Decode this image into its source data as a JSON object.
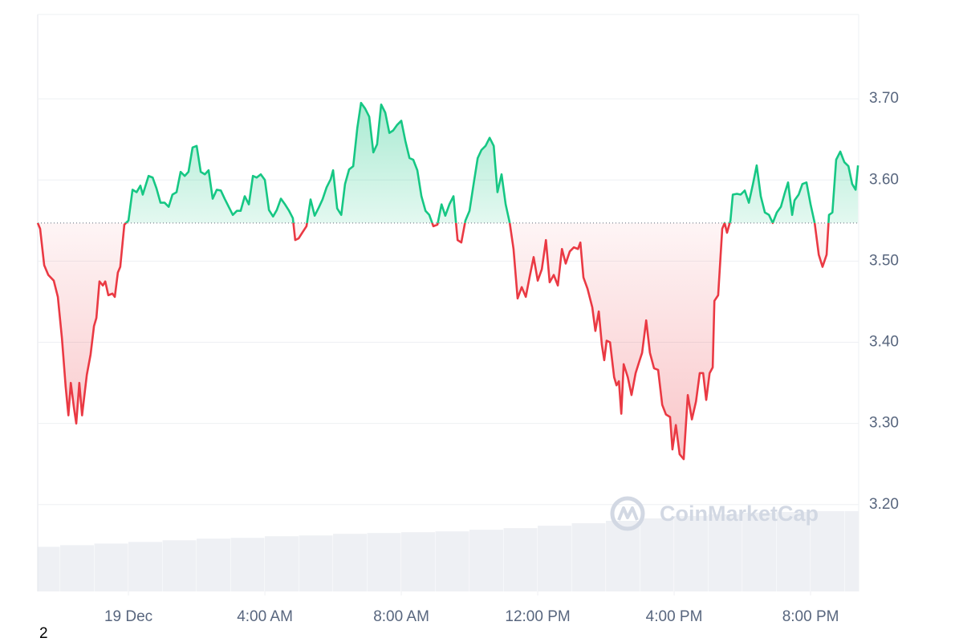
{
  "chart_data": {
    "type": "line",
    "watermark": "CoinMarketCap",
    "footnote": "2",
    "up_color": "#16c784",
    "down_color": "#ea3943",
    "baseline": 3.547,
    "grid": true,
    "xlim": [
      -2.66,
      21.41
    ],
    "ylim": [
      3.093,
      3.804
    ],
    "xticks": [
      {
        "value": 0,
        "label": "19 Dec"
      },
      {
        "value": 4,
        "label": "4:00 AM"
      },
      {
        "value": 8,
        "label": "8:00 AM"
      },
      {
        "value": 12,
        "label": "12:00 PM"
      },
      {
        "value": 16,
        "label": "4:00 PM"
      },
      {
        "value": 20,
        "label": "8:00 PM"
      }
    ],
    "yticks": [
      {
        "value": 3.2,
        "label": "3.20"
      },
      {
        "value": 3.3,
        "label": "3.30"
      },
      {
        "value": 3.4,
        "label": "3.40"
      },
      {
        "value": 3.5,
        "label": "3.50"
      },
      {
        "value": 3.6,
        "label": "3.60"
      },
      {
        "value": 3.7,
        "label": "3.70"
      }
    ],
    "x": [
      -2.66,
      -2.59,
      -2.47,
      -2.35,
      -2.19,
      -2.07,
      -1.95,
      -1.84,
      -1.76,
      -1.69,
      -1.6,
      -1.53,
      -1.44,
      -1.36,
      -1.22,
      -1.11,
      -1.01,
      -0.94,
      -0.85,
      -0.75,
      -0.68,
      -0.59,
      -0.47,
      -0.4,
      -0.31,
      -0.24,
      -0.12,
      0,
      0.12,
      0.24,
      0.35,
      0.42,
      0.59,
      0.71,
      0.82,
      0.94,
      1.06,
      1.18,
      1.29,
      1.41,
      1.53,
      1.65,
      1.76,
      1.88,
      2.0,
      2.12,
      2.24,
      2.35,
      2.47,
      2.59,
      2.71,
      2.82,
      2.94,
      3.06,
      3.18,
      3.29,
      3.41,
      3.53,
      3.65,
      3.76,
      3.88,
      4.0,
      4.12,
      4.24,
      4.35,
      4.47,
      4.59,
      4.71,
      4.82,
      4.89,
      4.99,
      5.11,
      5.22,
      5.34,
      5.46,
      5.58,
      5.69,
      5.81,
      5.93,
      6.0,
      6.12,
      6.24,
      6.35,
      6.47,
      6.59,
      6.71,
      6.82,
      6.94,
      7.06,
      7.18,
      7.29,
      7.41,
      7.53,
      7.65,
      7.76,
      7.88,
      8.0,
      8.12,
      8.24,
      8.35,
      8.47,
      8.59,
      8.71,
      8.82,
      8.94,
      9.06,
      9.18,
      9.29,
      9.41,
      9.53,
      9.65,
      9.76,
      9.88,
      10.0,
      10.12,
      10.24,
      10.35,
      10.47,
      10.59,
      10.71,
      10.82,
      10.94,
      11.06,
      11.18,
      11.29,
      11.41,
      11.53,
      11.65,
      11.76,
      11.88,
      12.0,
      12.12,
      12.24,
      12.35,
      12.47,
      12.59,
      12.71,
      12.82,
      12.94,
      13.06,
      13.18,
      13.25,
      13.34,
      13.46,
      13.6,
      13.69,
      13.79,
      13.88,
      13.95,
      14.02,
      14.12,
      14.24,
      14.31,
      14.38,
      14.45,
      14.52,
      14.64,
      14.75,
      14.87,
      14.99,
      15.06,
      15.18,
      15.29,
      15.41,
      15.53,
      15.65,
      15.76,
      15.88,
      15.95,
      16.05,
      16.16,
      16.28,
      16.4,
      16.52,
      16.64,
      16.75,
      16.85,
      16.94,
      17.04,
      17.13,
      17.18,
      17.29,
      17.41,
      17.48,
      17.55,
      17.65,
      17.72,
      17.84,
      17.95,
      18.07,
      18.19,
      18.31,
      18.42,
      18.54,
      18.66,
      18.78,
      18.89,
      19.01,
      19.13,
      19.25,
      19.34,
      19.46,
      19.53,
      19.65,
      19.76,
      19.88,
      20.0,
      20.12,
      20.24,
      20.35,
      20.47,
      20.54,
      20.64,
      20.75,
      20.87,
      20.99,
      21.11,
      21.22,
      21.32,
      21.39
    ],
    "values": [
      3.547,
      3.54,
      3.495,
      3.483,
      3.476,
      3.456,
      3.405,
      3.345,
      3.31,
      3.35,
      3.32,
      3.3,
      3.35,
      3.31,
      3.36,
      3.385,
      3.42,
      3.43,
      3.475,
      3.47,
      3.475,
      3.458,
      3.46,
      3.456,
      3.486,
      3.493,
      3.545,
      3.55,
      3.588,
      3.585,
      3.593,
      3.582,
      3.605,
      3.603,
      3.59,
      3.572,
      3.572,
      3.567,
      3.582,
      3.585,
      3.61,
      3.605,
      3.61,
      3.64,
      3.642,
      3.61,
      3.607,
      3.612,
      3.577,
      3.588,
      3.587,
      3.577,
      3.567,
      3.557,
      3.562,
      3.562,
      3.58,
      3.57,
      3.605,
      3.603,
      3.607,
      3.6,
      3.563,
      3.555,
      3.563,
      3.577,
      3.57,
      3.562,
      3.553,
      3.526,
      3.528,
      3.536,
      3.543,
      3.576,
      3.556,
      3.566,
      3.576,
      3.591,
      3.601,
      3.612,
      3.565,
      3.557,
      3.595,
      3.613,
      3.617,
      3.664,
      3.695,
      3.688,
      3.678,
      3.634,
      3.644,
      3.693,
      3.683,
      3.658,
      3.661,
      3.668,
      3.673,
      3.648,
      3.627,
      3.625,
      3.612,
      3.58,
      3.562,
      3.557,
      3.543,
      3.545,
      3.57,
      3.556,
      3.57,
      3.58,
      3.526,
      3.523,
      3.55,
      3.562,
      3.595,
      3.627,
      3.637,
      3.642,
      3.652,
      3.642,
      3.585,
      3.607,
      3.57,
      3.547,
      3.515,
      3.454,
      3.468,
      3.456,
      3.48,
      3.505,
      3.476,
      3.49,
      3.526,
      3.474,
      3.483,
      3.47,
      3.515,
      3.497,
      3.512,
      3.517,
      3.515,
      3.523,
      3.48,
      3.466,
      3.443,
      3.414,
      3.438,
      3.397,
      3.378,
      3.402,
      3.4,
      3.357,
      3.347,
      3.352,
      3.312,
      3.373,
      3.357,
      3.335,
      3.362,
      3.378,
      3.387,
      3.427,
      3.387,
      3.368,
      3.366,
      3.323,
      3.311,
      3.308,
      3.268,
      3.298,
      3.262,
      3.256,
      3.335,
      3.305,
      3.327,
      3.362,
      3.362,
      3.329,
      3.362,
      3.369,
      3.451,
      3.458,
      3.54,
      3.547,
      3.535,
      3.55,
      3.582,
      3.583,
      3.582,
      3.587,
      3.572,
      3.595,
      3.618,
      3.58,
      3.56,
      3.557,
      3.547,
      3.56,
      3.567,
      3.585,
      3.597,
      3.557,
      3.575,
      3.582,
      3.595,
      3.597,
      3.57,
      3.547,
      3.508,
      3.493,
      3.508,
      3.557,
      3.56,
      3.625,
      3.635,
      3.622,
      3.617,
      3.595,
      3.588,
      3.618
    ],
    "volume": {
      "color": "#eef0f4",
      "x": [
        -2.66,
        -2,
        -1,
        0,
        1,
        2,
        3,
        4,
        5,
        6,
        7,
        8,
        9,
        10,
        11,
        12,
        13,
        14,
        15,
        16,
        17,
        18,
        19,
        20,
        21
      ],
      "values": [
        3.148,
        3.15,
        3.152,
        3.154,
        3.156,
        3.158,
        3.159,
        3.161,
        3.162,
        3.164,
        3.165,
        3.166,
        3.167,
        3.169,
        3.171,
        3.174,
        3.177,
        3.18,
        3.183,
        3.186,
        3.188,
        3.19,
        3.191,
        3.192,
        3.192
      ]
    }
  }
}
